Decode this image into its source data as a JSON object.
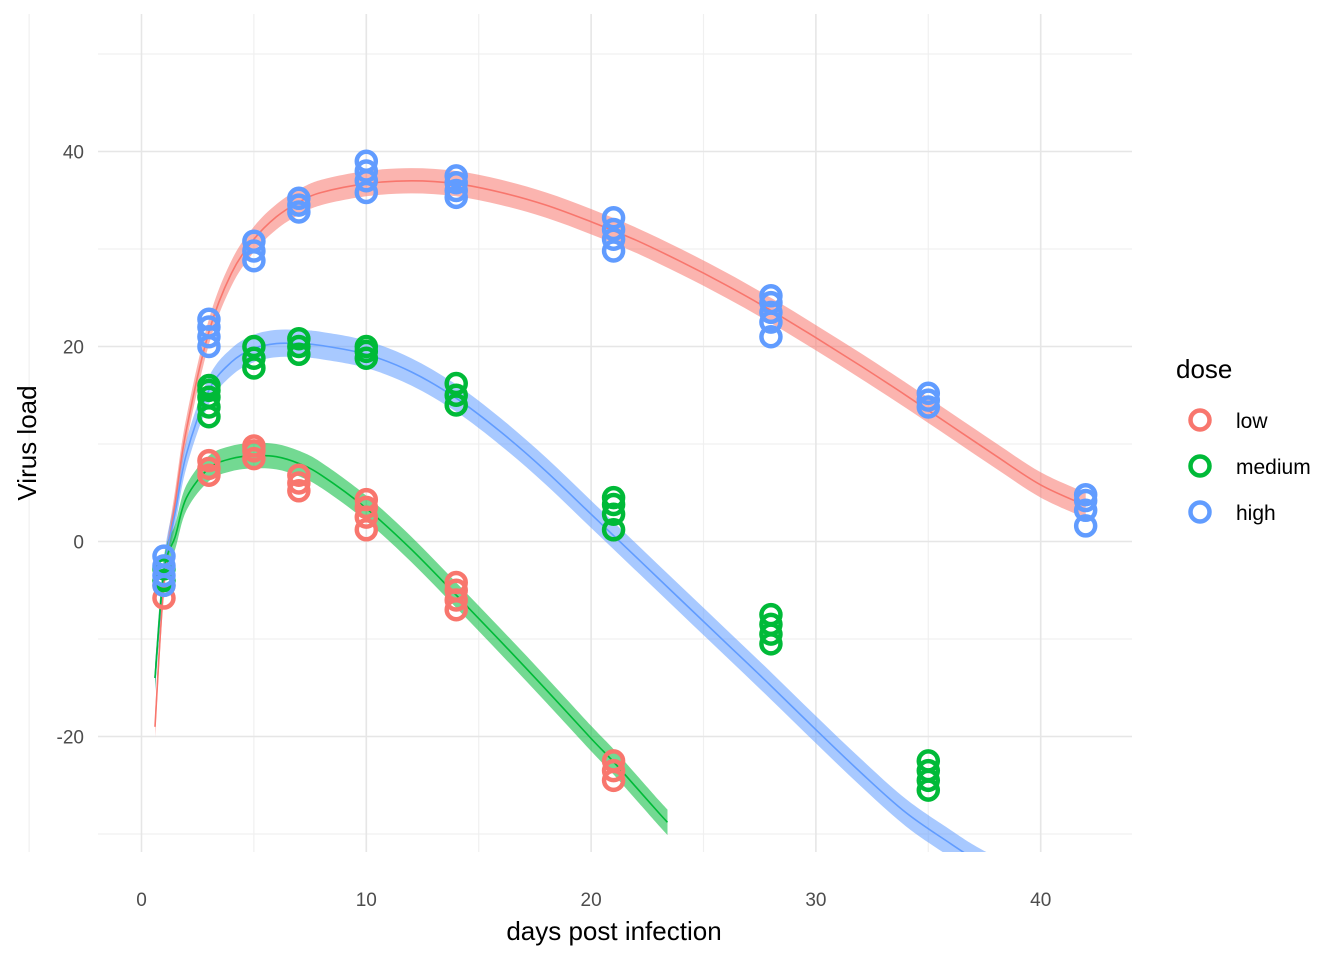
{
  "chart_data": {
    "type": "scatter",
    "xlabel": "days post infection",
    "ylabel": "Virus load",
    "xlim": [
      -2,
      44
    ],
    "ylim": [
      -33.5,
      51
    ],
    "x_ticks": [
      0,
      10,
      20,
      30,
      40
    ],
    "x_tick_labels": [
      "0",
      "10",
      "20",
      "30",
      "40"
    ],
    "y_ticks": [
      -20,
      0,
      20,
      40
    ],
    "y_tick_labels": [
      "-20",
      "0",
      "20",
      "40"
    ],
    "grid": true,
    "legend": {
      "title": "dose",
      "position": "right",
      "entries": [
        "low",
        "medium",
        "high"
      ]
    },
    "series": [
      {
        "name": "low",
        "color": "#F8766D",
        "points": [
          [
            1,
            -5.8
          ],
          [
            1,
            -4.5
          ],
          [
            3,
            6.8
          ],
          [
            3,
            7.5
          ],
          [
            3,
            8.3
          ],
          [
            5,
            8.5
          ],
          [
            5,
            9.3
          ],
          [
            5,
            9.8
          ],
          [
            7,
            5.2
          ],
          [
            7,
            6.0
          ],
          [
            7,
            6.8
          ],
          [
            10,
            1.2
          ],
          [
            10,
            2.5
          ],
          [
            10,
            3.5
          ],
          [
            10,
            4.3
          ],
          [
            14,
            -7.0
          ],
          [
            14,
            -6.0
          ],
          [
            14,
            -5.0
          ],
          [
            14,
            -4.2
          ],
          [
            21,
            -24.5
          ],
          [
            21,
            -23.5
          ],
          [
            21,
            -22.5
          ]
        ]
      },
      {
        "name": "medium",
        "color": "#00BA38",
        "points": [
          [
            1,
            -4.0
          ],
          [
            1,
            -2.8
          ],
          [
            3,
            12.8
          ],
          [
            3,
            13.8
          ],
          [
            3,
            14.8
          ],
          [
            3,
            15.5
          ],
          [
            3,
            16.0
          ],
          [
            5,
            17.8
          ],
          [
            5,
            18.8
          ],
          [
            5,
            20.0
          ],
          [
            7,
            19.2
          ],
          [
            7,
            20.0
          ],
          [
            7,
            20.8
          ],
          [
            10,
            18.8
          ],
          [
            10,
            19.5
          ],
          [
            10,
            20.0
          ],
          [
            14,
            14.0
          ],
          [
            14,
            15.0
          ],
          [
            14,
            16.2
          ],
          [
            21,
            1.2
          ],
          [
            21,
            2.8
          ],
          [
            21,
            3.8
          ],
          [
            21,
            4.5
          ],
          [
            28,
            -10.5
          ],
          [
            28,
            -9.5
          ],
          [
            28,
            -8.5
          ],
          [
            28,
            -7.5
          ],
          [
            35,
            -25.5
          ],
          [
            35,
            -24.5
          ],
          [
            35,
            -23.5
          ],
          [
            35,
            -22.5
          ]
        ]
      },
      {
        "name": "high",
        "color": "#619CFF",
        "points": [
          [
            1,
            -4.5
          ],
          [
            1,
            -3.5
          ],
          [
            1,
            -2.5
          ],
          [
            1,
            -1.5
          ],
          [
            3,
            20.0
          ],
          [
            3,
            21.0
          ],
          [
            3,
            22.0
          ],
          [
            3,
            22.8
          ],
          [
            5,
            28.8
          ],
          [
            5,
            29.8
          ],
          [
            5,
            30.8
          ],
          [
            7,
            33.8
          ],
          [
            7,
            34.5
          ],
          [
            7,
            35.2
          ],
          [
            10,
            35.8
          ],
          [
            10,
            37.0
          ],
          [
            10,
            38.0
          ],
          [
            10,
            39.0
          ],
          [
            14,
            35.3
          ],
          [
            14,
            36.0
          ],
          [
            14,
            36.8
          ],
          [
            14,
            37.5
          ],
          [
            21,
            29.8
          ],
          [
            21,
            31.0
          ],
          [
            21,
            32.0
          ],
          [
            21,
            33.2
          ],
          [
            28,
            21.0
          ],
          [
            28,
            22.5
          ],
          [
            28,
            23.5
          ],
          [
            28,
            24.5
          ],
          [
            28,
            25.2
          ],
          [
            35,
            13.8
          ],
          [
            35,
            14.5
          ],
          [
            35,
            15.2
          ],
          [
            42,
            1.6
          ],
          [
            42,
            3.2
          ],
          [
            42,
            4.2
          ],
          [
            42,
            4.8
          ]
        ]
      }
    ],
    "fits": [
      {
        "color": "#F8766D",
        "x": [
          0.6,
          1,
          1.5,
          2,
          3,
          4,
          5,
          6,
          7,
          8,
          10,
          12,
          14,
          16,
          18,
          20,
          22,
          24,
          26,
          28,
          30,
          32,
          34,
          36,
          38,
          40,
          42
        ],
        "y": [
          -19.0,
          -4.2,
          4.0,
          11.5,
          21.5,
          27.5,
          31.0,
          33.3,
          34.8,
          35.8,
          36.7,
          37.0,
          36.7,
          35.8,
          34.5,
          32.8,
          30.9,
          28.7,
          26.3,
          23.7,
          20.9,
          18.0,
          15.0,
          11.9,
          8.8,
          5.8,
          3.7
        ],
        "band": 1.3
      },
      {
        "color": "#619CFF",
        "x": [
          0.6,
          1,
          1.5,
          2,
          3,
          4,
          5,
          6,
          7,
          8,
          10,
          12,
          14,
          16,
          18,
          20,
          22,
          24,
          26,
          28,
          30,
          32,
          34,
          36,
          37,
          37.8
        ],
        "y": [
          -14.0,
          -3.0,
          3.0,
          9.0,
          15.5,
          18.4,
          19.8,
          20.3,
          20.3,
          20.1,
          19.2,
          17.4,
          14.7,
          11.2,
          7.2,
          2.8,
          -1.6,
          -6.0,
          -10.4,
          -14.8,
          -19.3,
          -23.7,
          -27.8,
          -31.0,
          -32.5,
          -33.5
        ],
        "band": 1.4
      },
      {
        "color": "#00BA38",
        "x": [
          0.6,
          1,
          1.5,
          2,
          3,
          4,
          5,
          6,
          7,
          8,
          10,
          12,
          14,
          16,
          18,
          20,
          21,
          22,
          23,
          23.4
        ],
        "y": [
          -14.0,
          -3.0,
          0.5,
          4.5,
          7.5,
          8.5,
          8.8,
          8.7,
          8.0,
          6.8,
          3.4,
          -0.8,
          -5.5,
          -10.3,
          -15.2,
          -20.2,
          -22.6,
          -25.2,
          -27.8,
          -28.8
        ],
        "band": 1.3
      }
    ]
  }
}
